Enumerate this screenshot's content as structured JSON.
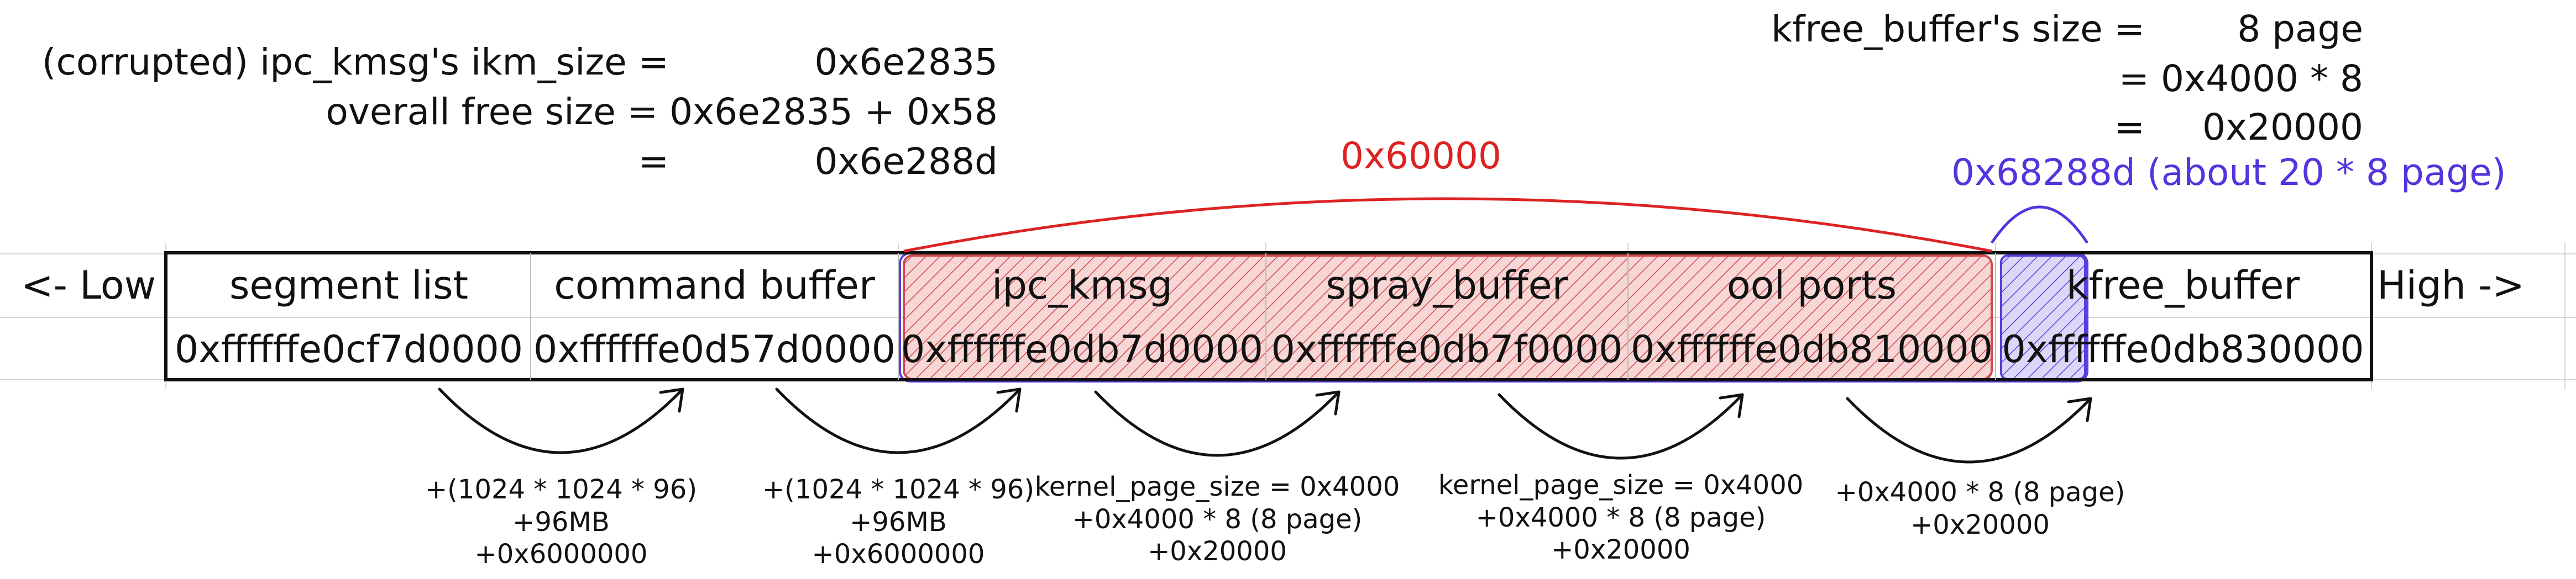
{
  "top_left": {
    "row1_label": "(corrupted) ipc_kmsg's ikm_size =",
    "row1_value": "0x6e2835",
    "row2_label": "overall free size = 0x6e2835 + 0x58",
    "row3_label": "=",
    "row3_value": "0x6e288d"
  },
  "top_right": {
    "row1_label": "kfree_buffer's size =",
    "row1_value": "8 page",
    "row2": "= 0x4000 * 8",
    "row3_label": "=",
    "row3_value": "0x20000"
  },
  "span_labels": {
    "red": "0x60000",
    "purple": "0x68288d (about 20 * 8 page)"
  },
  "ends": {
    "low": "<- Low",
    "high": "High ->"
  },
  "segments": [
    {
      "name": "segment list",
      "address": "0xffffffe0cf7d0000"
    },
    {
      "name": "command buffer",
      "address": "0xffffffe0d57d0000"
    },
    {
      "name": "ipc_kmsg",
      "address": "0xffffffe0db7d0000"
    },
    {
      "name": "spray_buffer",
      "address": "0xffffffe0db7f0000"
    },
    {
      "name": "ool ports",
      "address": "0xffffffe0db810000"
    },
    {
      "name": "kfree_buffer",
      "address": "0xffffffe0db830000"
    }
  ],
  "offsets": [
    {
      "lines": [
        "+(1024 * 1024 * 96)",
        "+96MB",
        "+0x6000000"
      ]
    },
    {
      "lines": [
        "+(1024 * 1024 * 96)",
        "+96MB",
        "+0x6000000"
      ]
    },
    {
      "lines": [
        "kernel_page_size = 0x4000",
        "+0x4000 * 8 (8 page)",
        "+0x20000"
      ]
    },
    {
      "lines": [
        "kernel_page_size = 0x4000",
        "+0x4000 * 8 (8 page)",
        "+0x20000"
      ]
    },
    {
      "lines": [
        "+0x4000 * 8 (8 page)",
        "+0x20000"
      ]
    }
  ],
  "colors": {
    "red_span": "#dd2222",
    "purple_span": "#5533dd",
    "red_fill": "#f6d2d2",
    "purple_fill": "#d9d2f6"
  }
}
